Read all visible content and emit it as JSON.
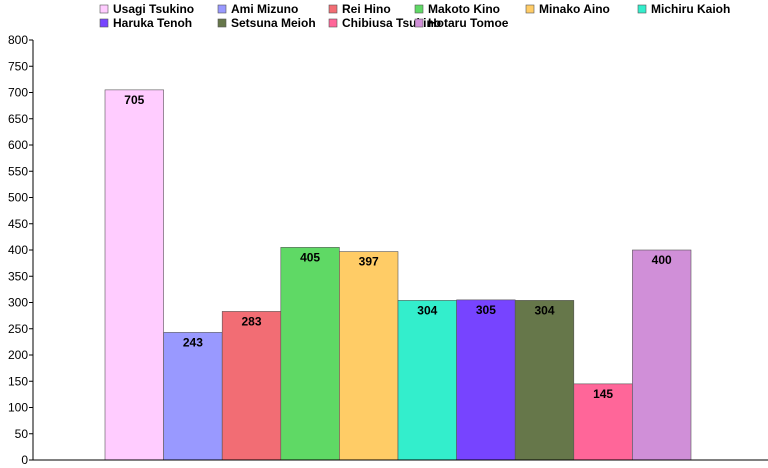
{
  "chart_data": {
    "type": "bar",
    "title": "",
    "xlabel": "",
    "ylabel": "",
    "ylim": [
      0,
      800
    ],
    "yticks": [
      0,
      50,
      100,
      150,
      200,
      250,
      300,
      350,
      400,
      450,
      500,
      550,
      600,
      650,
      700,
      750,
      800
    ],
    "grid": false,
    "legend_position": "top",
    "categories": [
      "Usagi Tsukino",
      "Ami Mizuno",
      "Rei Hino",
      "Makoto Kino",
      "Minako Aino",
      "Michiru Kaioh",
      "Haruka Tenoh",
      "Setsuna Meioh",
      "Chibiusa Tsukino",
      "Hotaru Tomoe"
    ],
    "values": [
      705,
      243,
      283,
      405,
      397,
      304,
      305,
      304,
      145,
      400
    ],
    "colors": [
      "#FFCCFF",
      "#9999FF",
      "#F26D74",
      "#5FD965",
      "#FFCC66",
      "#33EECC",
      "#7744FF",
      "#66774A",
      "#FF6699",
      "#D08FD8"
    ],
    "bar_labels": [
      "705",
      "243",
      "283",
      "405",
      "397",
      "304",
      "305",
      "304",
      "145",
      "400"
    ]
  }
}
